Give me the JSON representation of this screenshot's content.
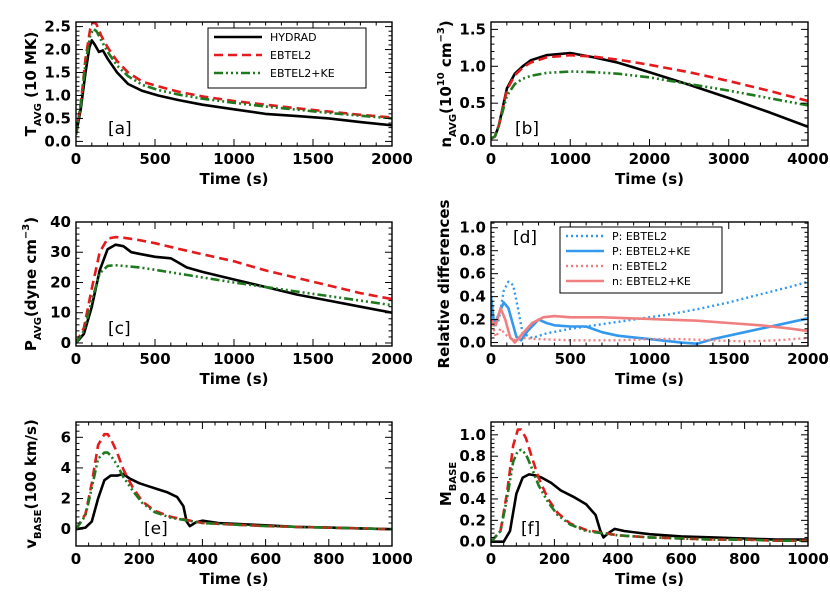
{
  "styles": {
    "HYDRAD": {
      "color": "#000000",
      "dash": "",
      "width": 2.6
    },
    "EBTEL2": {
      "color": "#e41a1c",
      "dash": "9,5",
      "width": 2.6
    },
    "EBTEL2+KE": {
      "color": "#1f7a1f",
      "dash": "9,3,2,3,2,3,2,3",
      "width": 2.6
    },
    "P: EBTEL2": {
      "color": "#3399ee",
      "dash": "2,3",
      "width": 2.4
    },
    "P: EBTEL2+KE": {
      "color": "#3399ee",
      "dash": "",
      "width": 2.6
    },
    "n: EBTEL2": {
      "color": "#f08080",
      "dash": "2,3",
      "width": 2.4
    },
    "n: EBTEL2+KE": {
      "color": "#f08080",
      "dash": "",
      "width": 2.6
    }
  },
  "chart_data": [
    {
      "id": "a",
      "panel_label": "[a]",
      "type": "line",
      "xlabel": "Time (s)",
      "ylabel": "T",
      "ylabel_sub": "AVG",
      "ylabel_rest": " (10 MK)",
      "xlim": [
        0,
        2000
      ],
      "ylim": [
        -0.1,
        2.6
      ],
      "xticks": [
        0,
        500,
        1000,
        1500,
        2000
      ],
      "yticks": [
        0.0,
        0.5,
        1.0,
        1.5,
        2.0,
        2.5
      ],
      "ytick_labels": [
        "0.0",
        "0.5",
        "1.0",
        "1.5",
        "2.0",
        "2.5"
      ],
      "legend": [
        "HYDRAD",
        "EBTEL2",
        "EBTEL2+KE"
      ],
      "series": [
        {
          "name": "HYDRAD",
          "x": [
            0,
            30,
            60,
            85,
            100,
            120,
            145,
            170,
            200,
            260,
            330,
            420,
            520,
            650,
            800,
            1000,
            1200,
            1400,
            1600,
            1800,
            2000
          ],
          "y": [
            0.15,
            0.7,
            1.5,
            2.05,
            2.2,
            2.1,
            1.95,
            1.98,
            1.8,
            1.5,
            1.25,
            1.1,
            1.0,
            0.9,
            0.8,
            0.7,
            0.6,
            0.55,
            0.5,
            0.42,
            0.35
          ]
        },
        {
          "name": "EBTEL2",
          "x": [
            0,
            30,
            60,
            90,
            110,
            130,
            160,
            200,
            260,
            330,
            420,
            520,
            650,
            800,
            1000,
            1200,
            1400,
            1600,
            1800,
            2000
          ],
          "y": [
            0.15,
            0.8,
            1.8,
            2.45,
            2.6,
            2.55,
            2.3,
            2.05,
            1.75,
            1.5,
            1.3,
            1.2,
            1.08,
            0.98,
            0.88,
            0.8,
            0.72,
            0.65,
            0.58,
            0.52
          ]
        },
        {
          "name": "EBTEL2+KE",
          "x": [
            0,
            30,
            60,
            90,
            110,
            130,
            160,
            200,
            260,
            330,
            420,
            520,
            650,
            800,
            1000,
            1200,
            1400,
            1600,
            1800,
            2000
          ],
          "y": [
            0.15,
            0.8,
            1.7,
            2.3,
            2.45,
            2.4,
            2.2,
            1.95,
            1.65,
            1.42,
            1.23,
            1.12,
            1.02,
            0.93,
            0.84,
            0.76,
            0.69,
            0.62,
            0.56,
            0.5
          ]
        }
      ]
    },
    {
      "id": "b",
      "panel_label": "[b]",
      "type": "line",
      "xlabel": "Time (s)",
      "ylabel": "n",
      "ylabel_sub": "AVG",
      "ylabel_rest": "(10",
      "ylabel_sup": "10",
      "ylabel_rest2": " cm",
      "ylabel_sup2": "−3",
      "ylabel_end": ")",
      "xlim": [
        0,
        4000
      ],
      "ylim": [
        -0.08,
        1.6
      ],
      "xticks": [
        0,
        1000,
        2000,
        3000,
        4000
      ],
      "yticks": [
        0.0,
        0.5,
        1.0,
        1.5
      ],
      "ytick_labels": [
        "0.0",
        "0.5",
        "1.0",
        "1.5"
      ],
      "series": [
        {
          "name": "HYDRAD",
          "x": [
            0,
            50,
            100,
            200,
            300,
            400,
            500,
            700,
            1000,
            1300,
            1600,
            2000,
            2500,
            3000,
            3500,
            4000
          ],
          "y": [
            0.02,
            0.05,
            0.2,
            0.7,
            0.9,
            1.0,
            1.08,
            1.15,
            1.18,
            1.12,
            1.05,
            0.92,
            0.75,
            0.57,
            0.38,
            0.18
          ]
        },
        {
          "name": "EBTEL2",
          "x": [
            0,
            50,
            100,
            200,
            300,
            400,
            500,
            700,
            1000,
            1300,
            1600,
            2000,
            2500,
            3000,
            3500,
            4000
          ],
          "y": [
            0.02,
            0.05,
            0.2,
            0.68,
            0.88,
            0.98,
            1.05,
            1.12,
            1.15,
            1.13,
            1.09,
            1.02,
            0.92,
            0.8,
            0.67,
            0.53
          ]
        },
        {
          "name": "EBTEL2+KE",
          "x": [
            0,
            50,
            100,
            200,
            300,
            400,
            500,
            700,
            1000,
            1300,
            1600,
            2000,
            2500,
            3000,
            3500,
            4000
          ],
          "y": [
            0.02,
            0.05,
            0.2,
            0.6,
            0.76,
            0.83,
            0.87,
            0.91,
            0.93,
            0.92,
            0.9,
            0.85,
            0.76,
            0.67,
            0.57,
            0.47
          ]
        }
      ]
    },
    {
      "id": "c",
      "panel_label": "[c]",
      "type": "line",
      "xlabel": "Time (s)",
      "ylabel": "P",
      "ylabel_sub": "AVG",
      "ylabel_rest": "(dyne cm",
      "ylabel_sup": "−3",
      "ylabel_end": ")",
      "xlim": [
        0,
        2000
      ],
      "ylim": [
        -1,
        40
      ],
      "xticks": [
        0,
        500,
        1000,
        1500,
        2000
      ],
      "yticks": [
        0,
        10,
        20,
        30,
        40
      ],
      "ytick_labels": [
        "0",
        "10",
        "20",
        "30",
        "40"
      ],
      "series": [
        {
          "name": "HYDRAD",
          "x": [
            0,
            50,
            100,
            150,
            200,
            250,
            300,
            350,
            400,
            450,
            500,
            600,
            650,
            700,
            800,
            1000,
            1200,
            1400,
            1600,
            1800,
            2000
          ],
          "y": [
            0,
            3,
            12,
            24,
            31,
            32.5,
            32,
            30,
            29.5,
            29,
            28.5,
            28,
            26.5,
            25,
            23.5,
            21,
            18.5,
            16,
            14,
            12,
            10
          ]
        },
        {
          "name": "EBTEL2",
          "x": [
            0,
            50,
            100,
            150,
            200,
            250,
            300,
            400,
            500,
            700,
            1000,
            1200,
            1400,
            1600,
            1800,
            2000
          ],
          "y": [
            0,
            5,
            18,
            30,
            34.5,
            35,
            34.8,
            34,
            33,
            30.5,
            27,
            24,
            21.5,
            19,
            16.5,
            14.5
          ]
        },
        {
          "name": "EBTEL2+KE",
          "x": [
            0,
            50,
            100,
            150,
            200,
            250,
            300,
            400,
            500,
            700,
            1000,
            1200,
            1400,
            1600,
            1800,
            2000
          ],
          "y": [
            0,
            4,
            14,
            23,
            25.5,
            25.7,
            25.5,
            25,
            24.2,
            22.5,
            20,
            18.5,
            17,
            15.5,
            14,
            12.5
          ]
        }
      ]
    },
    {
      "id": "d",
      "panel_label": "[d]",
      "type": "line",
      "xlabel": "Time (s)",
      "ylabel": "Relative differences",
      "xlim": [
        0,
        2000
      ],
      "ylim": [
        -0.03,
        1.05
      ],
      "xticks": [
        0,
        500,
        1000,
        1500,
        2000
      ],
      "yticks": [
        0.0,
        0.2,
        0.4,
        0.6,
        0.8,
        1.0
      ],
      "ytick_labels": [
        "0.0",
        "0.2",
        "0.4",
        "0.6",
        "0.8",
        "1.0"
      ],
      "legend": [
        "P: EBTEL2",
        "P: EBTEL2+KE",
        "n: EBTEL2",
        "n: EBTEL2+KE"
      ],
      "series": [
        {
          "name": "P: EBTEL2",
          "x": [
            0,
            20,
            50,
            80,
            110,
            140,
            170,
            200,
            260,
            350,
            500,
            700,
            900,
            1100,
            1300,
            1500,
            1700,
            1900,
            2000
          ],
          "y": [
            0.45,
            0.15,
            0.2,
            0.45,
            0.53,
            0.5,
            0.3,
            0.08,
            0.04,
            0.08,
            0.12,
            0.16,
            0.2,
            0.24,
            0.29,
            0.35,
            0.42,
            0.49,
            0.53
          ]
        },
        {
          "name": "P: EBTEL2+KE",
          "x": [
            0,
            20,
            50,
            80,
            110,
            140,
            160,
            190,
            230,
            300,
            350,
            400,
            500,
            600,
            700,
            800,
            1000,
            1200,
            1300,
            1400,
            1600,
            1800,
            2000
          ],
          "y": [
            0.4,
            0.15,
            0.25,
            0.35,
            0.3,
            0.15,
            0.05,
            0.02,
            0.1,
            0.2,
            0.17,
            0.15,
            0.14,
            0.14,
            0.09,
            0.06,
            0.03,
            0.0,
            -0.01,
            0.03,
            0.09,
            0.15,
            0.21
          ]
        },
        {
          "name": "n: EBTEL2",
          "x": [
            0,
            30,
            60,
            100,
            140,
            200,
            300,
            500,
            800,
            1000,
            1200,
            1400,
            1600,
            1800,
            2000
          ],
          "y": [
            0.2,
            0.05,
            0.12,
            0.06,
            0.02,
            0.04,
            0.03,
            0.02,
            0.02,
            0.03,
            0.03,
            0.02,
            0.01,
            0.02,
            0.04
          ]
        },
        {
          "name": "n: EBTEL2+KE",
          "x": [
            0,
            30,
            60,
            90,
            120,
            150,
            200,
            260,
            330,
            400,
            500,
            700,
            900,
            1100,
            1300,
            1500,
            1700,
            1900,
            2000
          ],
          "y": [
            0.2,
            0.15,
            0.3,
            0.2,
            0.05,
            0.0,
            0.08,
            0.17,
            0.22,
            0.23,
            0.22,
            0.22,
            0.21,
            0.2,
            0.19,
            0.17,
            0.15,
            0.12,
            0.1
          ]
        }
      ]
    },
    {
      "id": "e",
      "panel_label": "[e]",
      "type": "line",
      "xlabel": "Time (s)",
      "ylabel": "v",
      "ylabel_sub": "BASE",
      "ylabel_rest": "(100 km/s)",
      "xlim": [
        0,
        1000
      ],
      "ylim": [
        -1.1,
        7
      ],
      "xticks": [
        0,
        200,
        400,
        600,
        800,
        1000
      ],
      "yticks": [
        0,
        2,
        4,
        6
      ],
      "ytick_labels": [
        "0",
        "2",
        "4",
        "6"
      ],
      "series": [
        {
          "name": "HYDRAD",
          "x": [
            0,
            30,
            50,
            70,
            90,
            110,
            130,
            150,
            170,
            200,
            230,
            260,
            290,
            320,
            340,
            350,
            360,
            380,
            400,
            450,
            500,
            600,
            700,
            800,
            900,
            1000
          ],
          "y": [
            0,
            0.1,
            0.5,
            2.0,
            3.2,
            3.5,
            3.5,
            3.6,
            3.3,
            3.0,
            2.8,
            2.6,
            2.4,
            2.1,
            1.5,
            0.5,
            0.2,
            0.45,
            0.55,
            0.4,
            0.35,
            0.25,
            0.15,
            0.1,
            0.05,
            0.0
          ]
        },
        {
          "name": "EBTEL2",
          "x": [
            0,
            30,
            50,
            70,
            90,
            100,
            110,
            130,
            150,
            180,
            210,
            250,
            300,
            400,
            500,
            600,
            700,
            800,
            900,
            1000
          ],
          "y": [
            0,
            1.0,
            3.0,
            5.5,
            6.2,
            6.2,
            5.9,
            5.0,
            3.9,
            2.7,
            1.8,
            1.2,
            0.8,
            0.4,
            0.3,
            0.2,
            0.15,
            0.1,
            0.05,
            0.0
          ]
        },
        {
          "name": "EBTEL2+KE",
          "x": [
            0,
            30,
            50,
            70,
            90,
            100,
            110,
            130,
            150,
            180,
            210,
            250,
            300,
            400,
            500,
            600,
            700,
            800,
            900,
            1000
          ],
          "y": [
            0,
            0.9,
            2.7,
            4.6,
            5.0,
            5.0,
            4.8,
            4.2,
            3.4,
            2.5,
            1.7,
            1.1,
            0.75,
            0.4,
            0.3,
            0.2,
            0.15,
            0.1,
            0.05,
            0.0
          ]
        }
      ]
    },
    {
      "id": "f",
      "panel_label": "[f]",
      "type": "line",
      "xlabel": "Time (s)",
      "ylabel": "M",
      "ylabel_sub": "BASE",
      "xlim": [
        0,
        1000
      ],
      "ylim": [
        -0.04,
        1.12
      ],
      "xticks": [
        0,
        200,
        400,
        600,
        800,
        1000
      ],
      "yticks": [
        0.0,
        0.2,
        0.4,
        0.6,
        0.8,
        1.0
      ],
      "ytick_labels": [
        "0.0",
        "0.2",
        "0.4",
        "0.6",
        "0.8",
        "1.0"
      ],
      "series": [
        {
          "name": "HYDRAD",
          "x": [
            0,
            40,
            60,
            80,
            100,
            120,
            140,
            160,
            190,
            220,
            260,
            300,
            330,
            345,
            355,
            370,
            390,
            420,
            500,
            600,
            700,
            800,
            900,
            1000
          ],
          "y": [
            0,
            0,
            0.1,
            0.45,
            0.6,
            0.63,
            0.62,
            0.6,
            0.55,
            0.48,
            0.42,
            0.35,
            0.25,
            0.1,
            0.04,
            0.08,
            0.12,
            0.1,
            0.07,
            0.05,
            0.04,
            0.03,
            0.02,
            0.02
          ]
        },
        {
          "name": "EBTEL2",
          "x": [
            0,
            30,
            50,
            70,
            85,
            95,
            110,
            130,
            150,
            180,
            210,
            250,
            300,
            400,
            500,
            600,
            700,
            800,
            900,
            1000
          ],
          "y": [
            0,
            0.1,
            0.45,
            0.9,
            1.05,
            1.05,
            0.97,
            0.78,
            0.6,
            0.4,
            0.27,
            0.17,
            0.11,
            0.06,
            0.04,
            0.03,
            0.02,
            0.02,
            0.01,
            0.01
          ]
        },
        {
          "name": "EBTEL2+KE",
          "x": [
            0,
            30,
            50,
            70,
            85,
            95,
            110,
            130,
            150,
            180,
            210,
            250,
            300,
            400,
            500,
            600,
            700,
            800,
            900,
            1000
          ],
          "y": [
            0,
            0.1,
            0.4,
            0.75,
            0.85,
            0.86,
            0.82,
            0.68,
            0.53,
            0.37,
            0.25,
            0.16,
            0.1,
            0.06,
            0.04,
            0.03,
            0.02,
            0.02,
            0.01,
            0.01
          ]
        }
      ]
    }
  ]
}
